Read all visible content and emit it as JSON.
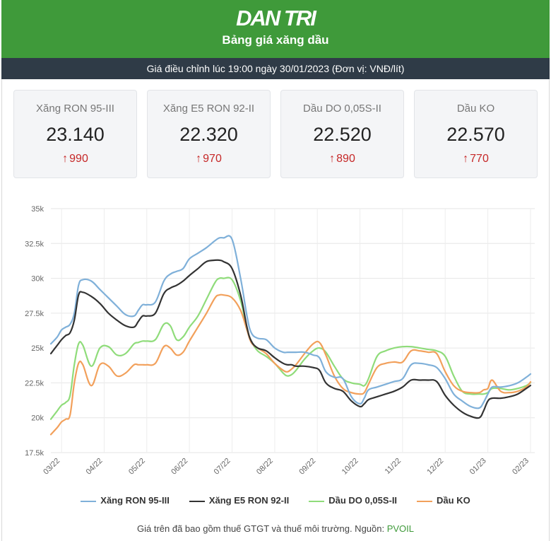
{
  "header": {
    "logo": "DAN TRI",
    "subtitle": "Bảng giá xăng dầu",
    "bg_color": "#3f9a3a"
  },
  "info_bar": {
    "text": "Giá điều chỉnh lúc 19:00 ngày 30/01/2023 (Đơn vị: VNĐ/lít)"
  },
  "cards": [
    {
      "name": "Xăng RON 95-III",
      "price": "23.140",
      "change": "990"
    },
    {
      "name": "Xăng E5 RON 92-II",
      "price": "22.320",
      "change": "970"
    },
    {
      "name": "Dầu DO 0,05S-II",
      "price": "22.520",
      "change": "890"
    },
    {
      "name": "Dầu KO",
      "price": "22.570",
      "change": "770"
    }
  ],
  "chart_data": {
    "type": "line",
    "title": "",
    "xlabel": "",
    "ylabel": "",
    "ylim": [
      17500,
      35000
    ],
    "yticks": [
      17500,
      20000,
      22500,
      25000,
      27500,
      30000,
      32500,
      35000
    ],
    "ytick_labels": [
      "17.5k",
      "20k",
      "22.5k",
      "25k",
      "27.5k",
      "30k",
      "32.5k",
      "35k"
    ],
    "x_tick_labels": [
      "03/22",
      "04/22",
      "05/22",
      "06/22",
      "07/22",
      "08/22",
      "09/22",
      "10/22",
      "11/22",
      "12/22",
      "01/23",
      "02/23"
    ],
    "x_tick_positions": [
      1,
      2,
      3,
      4,
      5,
      6,
      7,
      8,
      9,
      10,
      11,
      12
    ],
    "xlim": [
      0.75,
      12.1
    ],
    "grid": "horizontal",
    "legend_position": "bottom",
    "series": [
      {
        "name": "Xăng RON 95-III",
        "color": "#7fb0d9",
        "x": [
          0.75,
          0.9,
          1.0,
          1.1,
          1.2,
          1.3,
          1.4,
          1.5,
          1.7,
          1.9,
          2.1,
          2.3,
          2.5,
          2.7,
          2.8,
          2.9,
          3.0,
          3.2,
          3.4,
          3.55,
          3.7,
          3.85,
          4.0,
          4.2,
          4.4,
          4.6,
          4.7,
          4.8,
          5.0,
          5.2,
          5.35,
          5.45,
          5.6,
          5.8,
          6.0,
          6.2,
          6.3,
          6.4,
          6.5,
          6.7,
          6.9,
          7.05,
          7.2,
          7.4,
          7.6,
          7.8,
          8.0,
          8.1,
          8.2,
          8.4,
          8.6,
          8.8,
          9.0,
          9.2,
          9.4,
          9.6,
          9.8,
          10.0,
          10.2,
          10.4,
          10.6,
          10.8,
          10.9,
          11.0,
          11.1,
          11.3,
          11.5,
          11.7,
          11.9,
          12.0
        ],
        "y": [
          25300,
          25800,
          26300,
          26500,
          26700,
          27500,
          29500,
          29900,
          29800,
          29200,
          28600,
          28000,
          27400,
          27300,
          27700,
          28100,
          28100,
          28300,
          29800,
          30300,
          30500,
          30700,
          31400,
          31800,
          32200,
          32700,
          32900,
          32900,
          32800,
          30000,
          27300,
          26100,
          25700,
          25600,
          25000,
          24700,
          24700,
          24700,
          24700,
          24700,
          24500,
          24300,
          23300,
          22900,
          22800,
          21500,
          21000,
          21400,
          22000,
          22200,
          22400,
          22600,
          22800,
          23800,
          23900,
          23800,
          23600,
          22800,
          21700,
          21200,
          20800,
          20700,
          21100,
          21700,
          22200,
          22200,
          22300,
          22500,
          22900,
          23140
        ]
      },
      {
        "name": "Xăng E5 RON 92-II",
        "color": "#333333",
        "x": [
          0.75,
          0.9,
          1.0,
          1.1,
          1.2,
          1.3,
          1.4,
          1.5,
          1.7,
          1.9,
          2.1,
          2.3,
          2.5,
          2.7,
          2.8,
          2.9,
          3.0,
          3.2,
          3.4,
          3.55,
          3.7,
          3.85,
          4.0,
          4.2,
          4.4,
          4.6,
          4.7,
          4.8,
          5.0,
          5.2,
          5.35,
          5.45,
          5.6,
          5.8,
          6.0,
          6.2,
          6.3,
          6.4,
          6.5,
          6.7,
          6.9,
          7.05,
          7.2,
          7.4,
          7.6,
          7.8,
          8.0,
          8.1,
          8.2,
          8.4,
          8.6,
          8.8,
          9.0,
          9.2,
          9.4,
          9.6,
          9.8,
          10.0,
          10.2,
          10.4,
          10.6,
          10.8,
          10.9,
          11.0,
          11.1,
          11.3,
          11.5,
          11.7,
          11.9,
          12.0
        ],
        "y": [
          24600,
          25200,
          25600,
          25900,
          26100,
          27000,
          28800,
          29000,
          28700,
          28200,
          27500,
          27000,
          26600,
          26500,
          26900,
          27300,
          27300,
          27500,
          28900,
          29300,
          29500,
          29800,
          30200,
          30700,
          31200,
          31300,
          31300,
          31200,
          30700,
          28800,
          26500,
          25500,
          25000,
          24800,
          24300,
          23900,
          23800,
          23800,
          23700,
          23700,
          23600,
          23400,
          22500,
          22100,
          21900,
          21200,
          20800,
          21000,
          21300,
          21500,
          21700,
          21900,
          22200,
          22700,
          22700,
          22700,
          22600,
          21600,
          20900,
          20400,
          20100,
          20000,
          20500,
          21200,
          21400,
          21400,
          21500,
          21700,
          22100,
          22320
        ]
      },
      {
        "name": "Dầu DO 0,05S-II",
        "color": "#8fdc7a",
        "x": [
          0.75,
          0.9,
          1.0,
          1.1,
          1.2,
          1.3,
          1.4,
          1.5,
          1.7,
          1.9,
          2.1,
          2.3,
          2.5,
          2.7,
          2.8,
          2.9,
          3.0,
          3.2,
          3.4,
          3.55,
          3.7,
          3.85,
          4.0,
          4.2,
          4.4,
          4.6,
          4.7,
          4.8,
          5.0,
          5.2,
          5.35,
          5.45,
          5.6,
          5.8,
          6.0,
          6.2,
          6.3,
          6.4,
          6.5,
          6.7,
          6.9,
          7.05,
          7.2,
          7.4,
          7.6,
          7.8,
          8.0,
          8.1,
          8.2,
          8.4,
          8.6,
          8.8,
          9.0,
          9.2,
          9.4,
          9.6,
          9.8,
          10.0,
          10.2,
          10.4,
          10.6,
          10.8,
          10.9,
          11.0,
          11.1,
          11.3,
          11.5,
          11.7,
          11.9,
          12.0
        ],
        "y": [
          19900,
          20500,
          20900,
          21100,
          21600,
          23800,
          25300,
          25200,
          23700,
          25000,
          25100,
          24500,
          24600,
          25300,
          25400,
          25500,
          25500,
          25600,
          26700,
          26600,
          25600,
          25800,
          26500,
          27300,
          28500,
          29700,
          30000,
          30000,
          29900,
          28400,
          26400,
          25500,
          24800,
          24400,
          23900,
          23200,
          23000,
          23100,
          23400,
          24200,
          24800,
          25000,
          24700,
          23700,
          22800,
          22500,
          22400,
          22300,
          22800,
          24400,
          24800,
          25000,
          25100,
          25100,
          25000,
          24900,
          24800,
          24400,
          23000,
          21900,
          21700,
          21700,
          21700,
          21800,
          22100,
          22100,
          22000,
          22100,
          22300,
          22520
        ]
      },
      {
        "name": "Dầu KO",
        "color": "#f2a05b",
        "x": [
          0.75,
          0.9,
          1.0,
          1.1,
          1.2,
          1.3,
          1.4,
          1.5,
          1.7,
          1.9,
          2.1,
          2.3,
          2.5,
          2.7,
          2.8,
          2.9,
          3.0,
          3.2,
          3.4,
          3.55,
          3.7,
          3.85,
          4.0,
          4.2,
          4.4,
          4.6,
          4.7,
          4.8,
          5.0,
          5.2,
          5.35,
          5.45,
          5.6,
          5.8,
          6.0,
          6.2,
          6.3,
          6.4,
          6.5,
          6.7,
          6.9,
          7.05,
          7.2,
          7.4,
          7.6,
          7.8,
          8.0,
          8.1,
          8.2,
          8.4,
          8.6,
          8.8,
          9.0,
          9.2,
          9.4,
          9.6,
          9.8,
          10.0,
          10.2,
          10.4,
          10.6,
          10.8,
          10.9,
          11.0,
          11.1,
          11.3,
          11.5,
          11.7,
          11.9,
          12.0
        ],
        "y": [
          18800,
          19300,
          19700,
          19900,
          20200,
          22500,
          23900,
          23800,
          22300,
          23800,
          23700,
          23000,
          23200,
          23800,
          23800,
          23800,
          23800,
          23900,
          25100,
          25000,
          24500,
          24700,
          25500,
          26500,
          27500,
          28600,
          28800,
          28800,
          28600,
          27700,
          26300,
          25400,
          25000,
          24600,
          23900,
          23400,
          23300,
          23500,
          23800,
          24600,
          25300,
          25400,
          24500,
          23000,
          22100,
          21800,
          21700,
          21800,
          22400,
          23600,
          23900,
          24000,
          24000,
          24800,
          24800,
          24700,
          24600,
          23300,
          22300,
          21900,
          21800,
          21800,
          22000,
          22100,
          22700,
          21900,
          21800,
          21900,
          22200,
          22570
        ]
      }
    ]
  },
  "footnote": {
    "text": "Giá trên đã bao gồm thuế GTGT và thuế môi trường. Nguồn: ",
    "source": "PVOIL",
    "source_color": "#3f9a3a"
  }
}
